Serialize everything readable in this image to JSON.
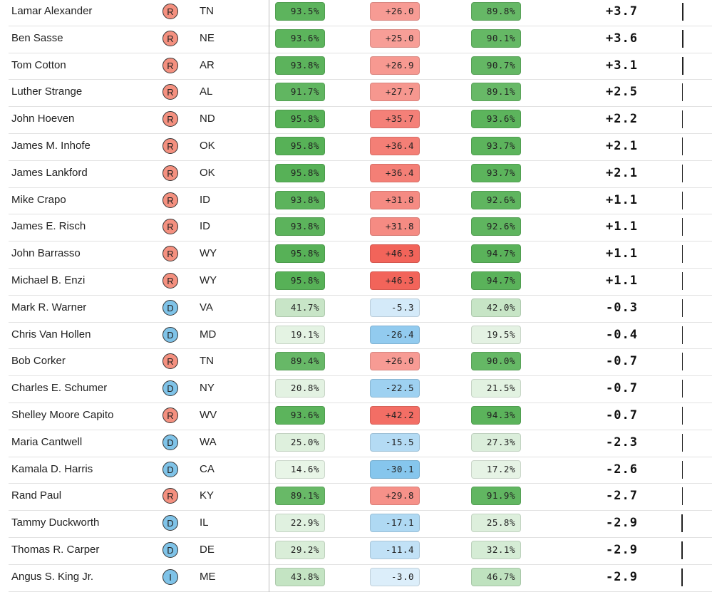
{
  "rows": [
    {
      "name": "Lamar Alexander",
      "party": "R",
      "state": "TN",
      "c1": "93.5%",
      "c2": "+26.0",
      "c3": "89.8%",
      "plus": "+3.7"
    },
    {
      "name": "Ben Sasse",
      "party": "R",
      "state": "NE",
      "c1": "93.6%",
      "c2": "+25.0",
      "c3": "90.1%",
      "plus": "+3.6"
    },
    {
      "name": "Tom Cotton",
      "party": "R",
      "state": "AR",
      "c1": "93.8%",
      "c2": "+26.9",
      "c3": "90.7%",
      "plus": "+3.1"
    },
    {
      "name": "Luther Strange",
      "party": "R",
      "state": "AL",
      "c1": "91.7%",
      "c2": "+27.7",
      "c3": "89.1%",
      "plus": "+2.5"
    },
    {
      "name": "John Hoeven",
      "party": "R",
      "state": "ND",
      "c1": "95.8%",
      "c2": "+35.7",
      "c3": "93.6%",
      "plus": "+2.2"
    },
    {
      "name": "James M. Inhofe",
      "party": "R",
      "state": "OK",
      "c1": "95.8%",
      "c2": "+36.4",
      "c3": "93.7%",
      "plus": "+2.1"
    },
    {
      "name": "James Lankford",
      "party": "R",
      "state": "OK",
      "c1": "95.8%",
      "c2": "+36.4",
      "c3": "93.7%",
      "plus": "+2.1"
    },
    {
      "name": "Mike Crapo",
      "party": "R",
      "state": "ID",
      "c1": "93.8%",
      "c2": "+31.8",
      "c3": "92.6%",
      "plus": "+1.1"
    },
    {
      "name": "James E. Risch",
      "party": "R",
      "state": "ID",
      "c1": "93.8%",
      "c2": "+31.8",
      "c3": "92.6%",
      "plus": "+1.1"
    },
    {
      "name": "John Barrasso",
      "party": "R",
      "state": "WY",
      "c1": "95.8%",
      "c2": "+46.3",
      "c3": "94.7%",
      "plus": "+1.1"
    },
    {
      "name": "Michael B. Enzi",
      "party": "R",
      "state": "WY",
      "c1": "95.8%",
      "c2": "+46.3",
      "c3": "94.7%",
      "plus": "+1.1"
    },
    {
      "name": "Mark R. Warner",
      "party": "D",
      "state": "VA",
      "c1": "41.7%",
      "c2": "-5.3",
      "c3": "42.0%",
      "plus": "-0.3"
    },
    {
      "name": "Chris Van Hollen",
      "party": "D",
      "state": "MD",
      "c1": "19.1%",
      "c2": "-26.4",
      "c3": "19.5%",
      "plus": "-0.4"
    },
    {
      "name": "Bob Corker",
      "party": "R",
      "state": "TN",
      "c1": "89.4%",
      "c2": "+26.0",
      "c3": "90.0%",
      "plus": "-0.7"
    },
    {
      "name": "Charles E. Schumer",
      "party": "D",
      "state": "NY",
      "c1": "20.8%",
      "c2": "-22.5",
      "c3": "21.5%",
      "plus": "-0.7"
    },
    {
      "name": "Shelley Moore Capito",
      "party": "R",
      "state": "WV",
      "c1": "93.6%",
      "c2": "+42.2",
      "c3": "94.3%",
      "plus": "-0.7"
    },
    {
      "name": "Maria Cantwell",
      "party": "D",
      "state": "WA",
      "c1": "25.0%",
      "c2": "-15.5",
      "c3": "27.3%",
      "plus": "-2.3"
    },
    {
      "name": "Kamala D. Harris",
      "party": "D",
      "state": "CA",
      "c1": "14.6%",
      "c2": "-30.1",
      "c3": "17.2%",
      "plus": "-2.6"
    },
    {
      "name": "Rand Paul",
      "party": "R",
      "state": "KY",
      "c1": "89.1%",
      "c2": "+29.8",
      "c3": "91.9%",
      "plus": "-2.7"
    },
    {
      "name": "Tammy Duckworth",
      "party": "D",
      "state": "IL",
      "c1": "22.9%",
      "c2": "-17.1",
      "c3": "25.8%",
      "plus": "-2.9"
    },
    {
      "name": "Thomas R. Carper",
      "party": "D",
      "state": "DE",
      "c1": "29.2%",
      "c2": "-11.4",
      "c3": "32.1%",
      "plus": "-2.9"
    },
    {
      "name": "Angus S. King Jr.",
      "party": "I",
      "state": "ME",
      "c1": "43.8%",
      "c2": "-3.0",
      "c3": "46.7%",
      "plus": "-2.9"
    }
  ],
  "colors": {
    "republican_badge": "#f4907f",
    "democrat_badge": "#7fc3e8",
    "independent_badge": "#7fc3e8",
    "green_strong": "#4cac4c",
    "red_strong": "#f2645a",
    "blue_strong": "#54aee6"
  }
}
